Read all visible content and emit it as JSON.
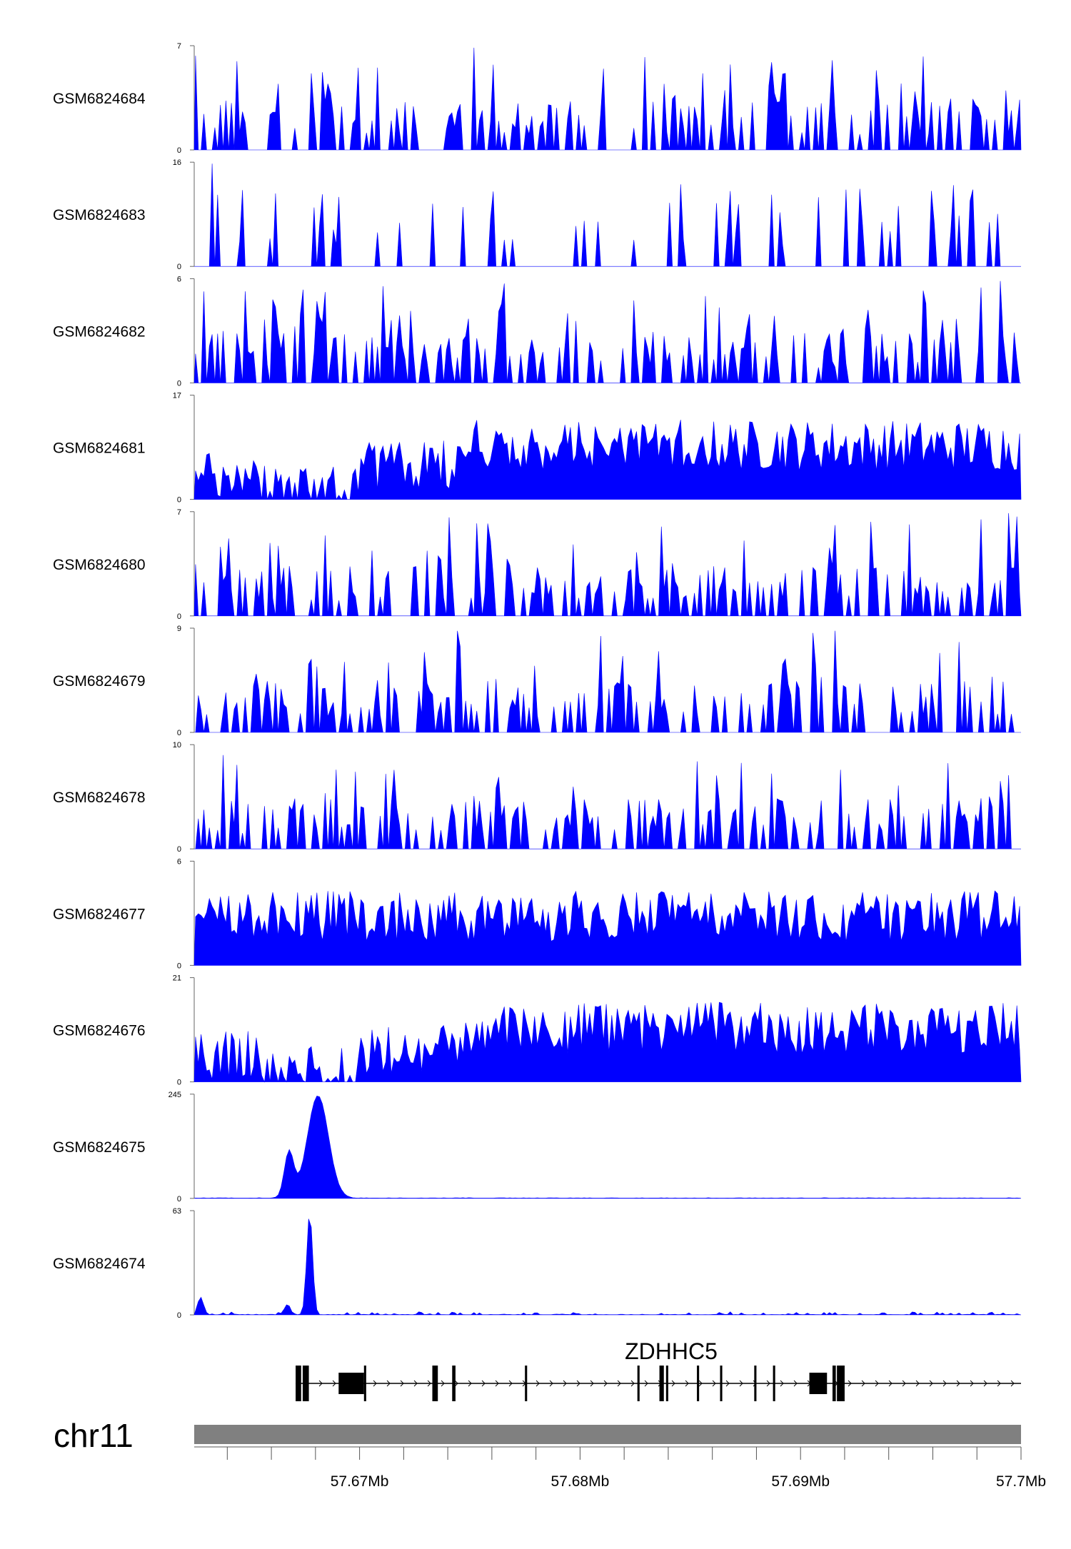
{
  "chart_data": {
    "type": "area",
    "chromosome": "chr11",
    "x_range_bp": [
      57662500,
      57700000
    ],
    "track_color": "#0000ff",
    "tracks": [
      {
        "name": "GSM6824684",
        "ymax": "7",
        "profile": "sparse",
        "seed": 11
      },
      {
        "name": "GSM6824683",
        "ymax": "16",
        "profile": "spikes",
        "seed": 23
      },
      {
        "name": "GSM6824682",
        "ymax": "6",
        "profile": "sparse",
        "seed": 37
      },
      {
        "name": "GSM6824681",
        "ymax": "17",
        "profile": "dense",
        "seed": 41
      },
      {
        "name": "GSM6824680",
        "ymax": "7",
        "profile": "sparse",
        "seed": 53
      },
      {
        "name": "GSM6824679",
        "ymax": "9",
        "profile": "sparse",
        "seed": 67
      },
      {
        "name": "GSM6824678",
        "ymax": "10",
        "profile": "sparse",
        "seed": 71
      },
      {
        "name": "GSM6824677",
        "ymax": "6",
        "profile": "dense2",
        "seed": 83
      },
      {
        "name": "GSM6824676",
        "ymax": "21",
        "profile": "dense",
        "seed": 97
      },
      {
        "name": "GSM6824675",
        "ymax": "245",
        "profile": "peak1",
        "seed": 101
      },
      {
        "name": "GSM6824674",
        "ymax": "63",
        "profile": "peak2",
        "seed": 113
      }
    ],
    "ymin_label": "0",
    "gene": {
      "name": "ZDHHC5",
      "start_bp": 57667100,
      "end_bp": 57700000,
      "exons_bp": [
        [
          57667100,
          57667350
        ],
        [
          57667420,
          57667700
        ],
        [
          57669050,
          57670200
        ],
        [
          57670200,
          57670300
        ],
        [
          57673300,
          57673550
        ],
        [
          57674200,
          57674350
        ],
        [
          57677500,
          57677600
        ],
        [
          57682600,
          57682700
        ],
        [
          57683600,
          57683800
        ],
        [
          57683900,
          57684000
        ],
        [
          57685300,
          57685400
        ],
        [
          57686350,
          57686450
        ],
        [
          57687900,
          57688000
        ],
        [
          57688750,
          57688850
        ],
        [
          57690400,
          57691200
        ],
        [
          57691450,
          57691600
        ],
        [
          57691650,
          57692000
        ]
      ]
    },
    "x_ticks": [
      {
        "pos": 57670000,
        "label": "57.67Mb"
      },
      {
        "pos": 57680000,
        "label": "57.68Mb"
      },
      {
        "pos": 57690000,
        "label": "57.69Mb"
      },
      {
        "pos": 57700000,
        "label": "57.7Mb"
      }
    ],
    "minor_tick_step_bp": 2000
  }
}
